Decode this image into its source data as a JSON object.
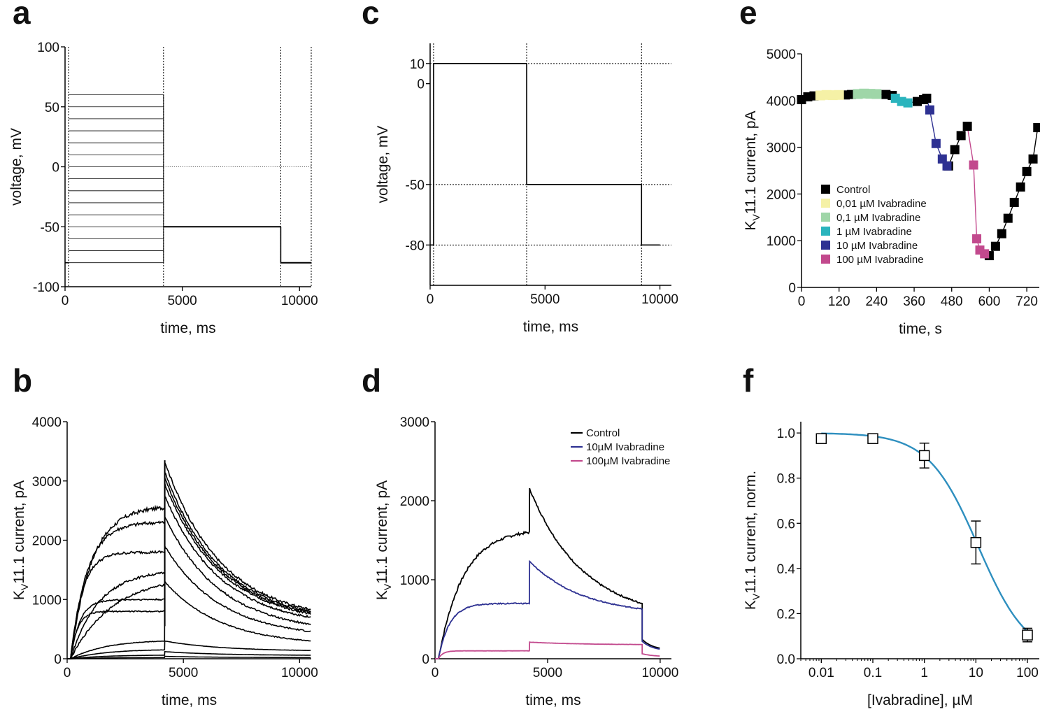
{
  "panels": {
    "a": {
      "letter": "a"
    },
    "b": {
      "letter": "b"
    },
    "c": {
      "letter": "c"
    },
    "d": {
      "letter": "d"
    },
    "e": {
      "letter": "e"
    },
    "f": {
      "letter": "f"
    }
  },
  "chart_data": [
    {
      "id": "a",
      "type": "line",
      "title": "",
      "xlabel": "time, ms",
      "ylabel": "voltage, mV",
      "xlim": [
        0,
        10500
      ],
      "ylim": [
        -100,
        100
      ],
      "xticks": [
        "0",
        "5000",
        "10000"
      ],
      "yticks": [
        "100",
        "50",
        "0",
        "-50",
        "-100"
      ],
      "protocol": {
        "holding_mV": -80,
        "step_start_ms": 150,
        "step_end_ms": 4200,
        "step_levels_mV": [
          -80,
          -70,
          -60,
          -50,
          -40,
          -30,
          -20,
          -10,
          0,
          10,
          20,
          30,
          40,
          50,
          60
        ],
        "tail_mV": -50,
        "tail_end_ms": 9200,
        "sweep_end_ms": 10500,
        "dotted_x_ms": [
          150,
          4200,
          9200,
          10500
        ],
        "dotted_y_mV": [
          0
        ]
      }
    },
    {
      "id": "b",
      "type": "line",
      "title": "",
      "xlabel": "time, ms",
      "ylabel_main": "K",
      "ylabel_sub": "V",
      "ylabel_rest": "11.1 current, pA",
      "xlim": [
        0,
        10500
      ],
      "ylim": [
        0,
        4000
      ],
      "xticks": [
        "0",
        "5000",
        "10000"
      ],
      "yticks": [
        "4000",
        "3000",
        "2000",
        "1000",
        "0"
      ],
      "series": [
        {
          "step_end_pA": 2550,
          "tail_peak_pA": 3330,
          "tail_end_pA": 830
        },
        {
          "step_end_pA": 2300,
          "tail_peak_pA": 3150,
          "tail_end_pA": 800
        },
        {
          "step_end_pA": 1800,
          "tail_peak_pA": 3050,
          "tail_end_pA": 780
        },
        {
          "step_end_pA": 1450,
          "tail_peak_pA": 2950,
          "tail_end_pA": 760
        },
        {
          "step_end_pA": 1250,
          "tail_peak_pA": 2750,
          "tail_end_pA": 700
        },
        {
          "step_end_pA": 1000,
          "tail_peak_pA": 2400,
          "tail_end_pA": 580
        },
        {
          "step_end_pA": 800,
          "tail_peak_pA": 1900,
          "tail_end_pA": 460
        },
        {
          "step_end_pA": 300,
          "tail_peak_pA": 1300,
          "tail_end_pA": 300
        },
        {
          "step_end_pA": 150,
          "tail_peak_pA": 300,
          "tail_end_pA": 140
        },
        {
          "step_end_pA": 60,
          "tail_peak_pA": 120,
          "tail_end_pA": 60
        },
        {
          "step_end_pA": 20,
          "tail_peak_pA": 40,
          "tail_end_pA": 20
        }
      ]
    },
    {
      "id": "c",
      "type": "line",
      "title": "",
      "xlabel": "time, ms",
      "ylabel": "voltage, mV",
      "xlim": [
        0,
        10500
      ],
      "ylim": [
        -100,
        20
      ],
      "xticks": [
        "0",
        "5000",
        "10000"
      ],
      "yticks": [
        "10",
        "0",
        "-50",
        "-80"
      ],
      "protocol": {
        "holding_mV": -80,
        "step_mV": 10,
        "step_start_ms": 150,
        "step_end_ms": 4200,
        "tail_mV": -50,
        "tail_end_ms": 9200,
        "sweep_end_ms": 10000,
        "dotted_x_ms": [
          150,
          4200,
          9200
        ],
        "dotted_y_mV": [
          10,
          -50,
          -80
        ]
      }
    },
    {
      "id": "d",
      "type": "line",
      "title": "",
      "xlabel": "time, ms",
      "ylabel_main": "K",
      "ylabel_sub": "V",
      "ylabel_rest": "11.1 current, pA",
      "xlim": [
        0,
        10500
      ],
      "ylim": [
        0,
        3000
      ],
      "xticks": [
        "0",
        "5000",
        "10000"
      ],
      "yticks": [
        "3000",
        "2000",
        "1000",
        "0"
      ],
      "legend_position": "top-right",
      "series": [
        {
          "name": "Control",
          "color": "#000000",
          "step_end_pA": 1600,
          "tail_peak_pA": 2150,
          "tail_end_pA": 700
        },
        {
          "name": "10µM Ivabradine",
          "color": "#2e3192",
          "step_end_pA": 700,
          "tail_peak_pA": 1230,
          "tail_end_pA": 630
        },
        {
          "name": "100µM Ivabradine",
          "color": "#c2498d",
          "step_end_pA": 100,
          "tail_peak_pA": 210,
          "tail_end_pA": 180
        }
      ]
    },
    {
      "id": "e",
      "type": "scatter",
      "title": "",
      "xlabel": "time, s",
      "ylabel_main": "K",
      "ylabel_sub": "V",
      "ylabel_rest": "11.1 current, pA",
      "xlim": [
        0,
        760
      ],
      "ylim": [
        0,
        5000
      ],
      "xticks": [
        "0",
        "120",
        "240",
        "360",
        "480",
        "600",
        "720"
      ],
      "yticks": [
        "5000",
        "4000",
        "3000",
        "2000",
        "1000",
        "0"
      ],
      "legend_position": "left-middle",
      "series": [
        {
          "name": "Control",
          "color": "#000000",
          "x": [
            0,
            20,
            40,
            140,
            160,
            270,
            290,
            370,
            390,
            400,
            470,
            490,
            510,
            530,
            600,
            620,
            640,
            660,
            680,
            700,
            720,
            740,
            755
          ],
          "y": [
            4020,
            4080,
            4100,
            4120,
            4130,
            4130,
            4110,
            3980,
            4020,
            4050,
            2600,
            2950,
            3250,
            3450,
            680,
            880,
            1150,
            1480,
            1820,
            2150,
            2480,
            2750,
            3420
          ]
        },
        {
          "name": "0,01 µM Ivabradine",
          "color": "#f5f1a6",
          "x": [
            60,
            80,
            100,
            120
          ],
          "y": [
            4110,
            4120,
            4115,
            4120
          ]
        },
        {
          "name": "0,1 µM Ivabradine",
          "color": "#9fd6a8",
          "x": [
            180,
            200,
            220,
            240
          ],
          "y": [
            4140,
            4150,
            4145,
            4140
          ]
        },
        {
          "name": "1 µM Ivabradine",
          "color": "#2ab4bd",
          "x": [
            300,
            320,
            340
          ],
          "y": [
            4050,
            3980,
            3950
          ]
        },
        {
          "name": "10 µM Ivabradine",
          "color": "#2e3192",
          "x": [
            410,
            430,
            450,
            465
          ],
          "y": [
            3800,
            3080,
            2750,
            2600
          ]
        },
        {
          "name": "100 µM Ivabradine",
          "color": "#c2498d",
          "x": [
            550,
            560,
            570,
            585
          ],
          "y": [
            2620,
            1040,
            800,
            720
          ]
        }
      ]
    },
    {
      "id": "f",
      "type": "scatter",
      "title": "",
      "xlabel": "[Ivabradine], µM",
      "ylabel_main": "K",
      "ylabel_sub": "V",
      "ylabel_rest": "11.1 current, norm.",
      "x_scale": "log",
      "xlim": [
        0.004,
        170
      ],
      "ylim": [
        0,
        1.05
      ],
      "xticks": [
        "0.01",
        "0.1",
        "1",
        "10",
        "100"
      ],
      "yticks": [
        "1.0",
        "0.8",
        "0.6",
        "0.4",
        "0.2",
        "0.0"
      ],
      "points": [
        {
          "x": 0.01,
          "y": 0.975,
          "err": 0.0
        },
        {
          "x": 0.1,
          "y": 0.975,
          "err": 0.0
        },
        {
          "x": 1,
          "y": 0.9,
          "err": 0.055
        },
        {
          "x": 10,
          "y": 0.515,
          "err": 0.095
        },
        {
          "x": 100,
          "y": 0.105,
          "err": 0.03
        }
      ],
      "fit": {
        "color": "#2e8fbf",
        "ic50_uM": 11,
        "hill": 0.9,
        "top": 1.0
      }
    }
  ]
}
